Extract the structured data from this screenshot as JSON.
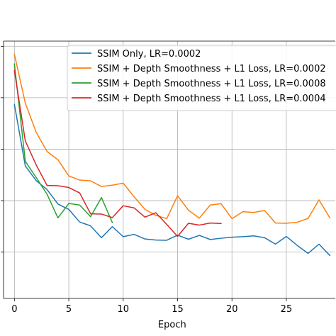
{
  "chart_data": {
    "type": "line",
    "title": "",
    "xlabel": "Epoch",
    "ylabel": "",
    "xlim": [
      -1,
      29.5
    ],
    "ylim": [
      0.0,
      1.0
    ],
    "xticks": [
      0,
      5,
      10,
      15,
      20,
      25
    ],
    "yticks": [
      0.18,
      0.38,
      0.58,
      0.78,
      0.98
    ],
    "grid": true,
    "legend_position": "upper right",
    "series": [
      {
        "name": "SSIM Only, LR=0.0002",
        "color": "#1f77b4",
        "x": [
          0,
          1,
          2,
          3,
          4,
          5,
          6,
          7,
          8,
          9,
          10,
          11,
          12,
          13,
          14,
          15,
          16,
          17,
          18,
          19,
          20,
          21,
          22,
          23,
          24,
          25,
          26,
          27,
          28,
          29
        ],
        "y": [
          0.754,
          0.515,
          0.458,
          0.423,
          0.367,
          0.346,
          0.297,
          0.282,
          0.236,
          0.279,
          0.24,
          0.249,
          0.231,
          0.227,
          0.226,
          0.246,
          0.23,
          0.245,
          0.229,
          0.234,
          0.238,
          0.24,
          0.243,
          0.236,
          0.211,
          0.241,
          0.206,
          0.175,
          0.211,
          0.167
        ]
      },
      {
        "name": "SSIM + Depth Smoothness + L1 Loss, LR=0.0002",
        "color": "#ff7f0e",
        "x": [
          0,
          1,
          2,
          3,
          4,
          5,
          6,
          7,
          8,
          9,
          10,
          11,
          12,
          13,
          14,
          15,
          16,
          17,
          18,
          19,
          20,
          21,
          22,
          23,
          24,
          25,
          26,
          27,
          28,
          29
        ],
        "y": [
          0.949,
          0.759,
          0.646,
          0.571,
          0.539,
          0.476,
          0.46,
          0.457,
          0.435,
          0.44,
          0.448,
          0.395,
          0.346,
          0.323,
          0.31,
          0.399,
          0.343,
          0.312,
          0.363,
          0.368,
          0.31,
          0.337,
          0.334,
          0.342,
          0.293,
          0.292,
          0.296,
          0.311,
          0.383,
          0.313
        ]
      },
      {
        "name": "SSIM + Depth Smoothness + L1 Loss, LR=0.0008",
        "color": "#2ca02c",
        "x": [
          0,
          1,
          2,
          3,
          4,
          5,
          6,
          7,
          8,
          9
        ],
        "y": [
          0.911,
          0.533,
          0.47,
          0.405,
          0.313,
          0.369,
          0.363,
          0.318,
          0.392,
          0.295
        ]
      },
      {
        "name": "SSIM + Depth Smoothness + L1 Loss, LR=0.0004",
        "color": "#d62728",
        "x": [
          0,
          1,
          2,
          3,
          4,
          5,
          6,
          7,
          8,
          9,
          10,
          11,
          12,
          13,
          14,
          15,
          16,
          17,
          18,
          19
        ],
        "y": [
          0.885,
          0.612,
          0.519,
          0.439,
          0.438,
          0.431,
          0.41,
          0.329,
          0.328,
          0.314,
          0.36,
          0.352,
          0.316,
          0.333,
          0.288,
          0.241,
          0.292,
          0.285,
          0.293,
          0.291
        ]
      }
    ]
  }
}
